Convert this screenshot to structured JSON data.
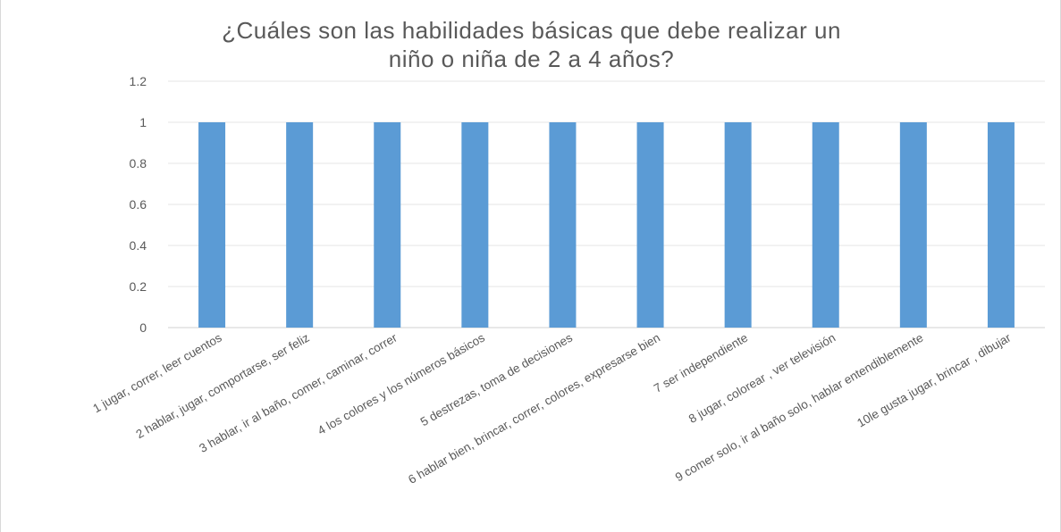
{
  "chart_data": {
    "type": "bar",
    "title_lines": [
      "¿Cuáles son las habilidades básicas que debe realizar un",
      "niño o niña de 2 a 4 años?"
    ],
    "categories": [
      "1 jugar, correr, leer cuentos",
      "2 hablar, jugar, comportarse, ser feliz",
      "3 hablar, ir al baño, comer, caminar, correr",
      "4 los colores y los números básicos",
      "5 destrezas, toma de decisiones",
      "6 hablar bien, brincar, correr, colores, expresarse bien",
      "7 ser independiente",
      "8 jugar, colorear , ver televisión",
      "9 comer solo, ir al baño solo, hablar entendiblemente",
      "10le gusta jugar, brincar , dibujar"
    ],
    "values": [
      1,
      1,
      1,
      1,
      1,
      1,
      1,
      1,
      1,
      1
    ],
    "y_ticks": [
      "0",
      "0.2",
      "0.4",
      "0.6",
      "0.8",
      "1",
      "1.2"
    ],
    "ylim": [
      0,
      1.2
    ],
    "grid": true,
    "legend": "none",
    "bar_color": "#5b9bd5"
  }
}
